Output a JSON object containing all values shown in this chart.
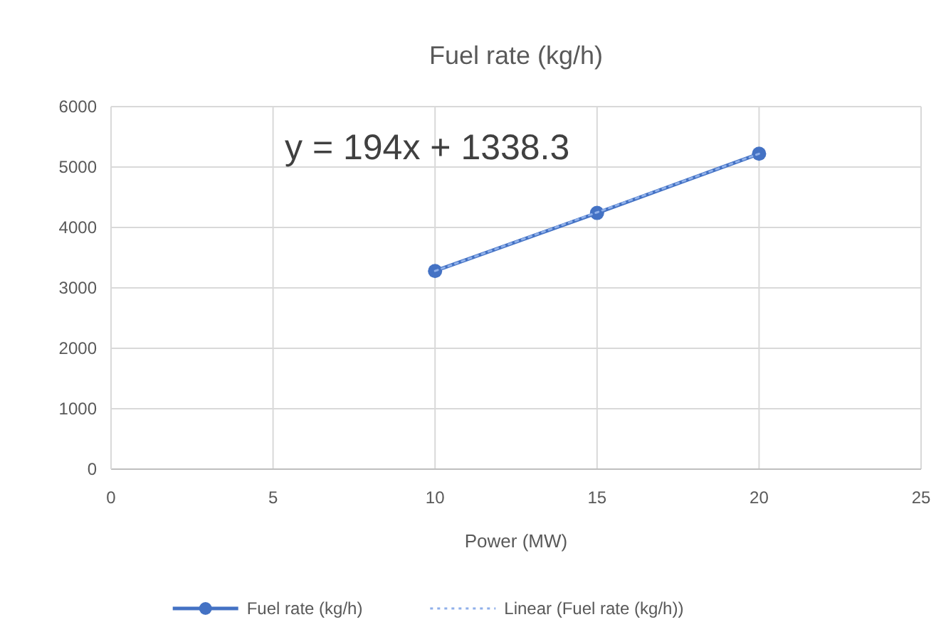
{
  "chart_data": {
    "type": "line",
    "title": "Fuel rate (kg/h)",
    "xlabel": "Power (MW)",
    "annotations": [
      "y = 194x + 1338.3"
    ],
    "x": [
      10,
      15,
      20
    ],
    "series": [
      {
        "name": "Fuel rate (kg/h)",
        "color": "#4472c4",
        "values": [
          3280,
          4240,
          5220
        ],
        "marker": "circle",
        "line_style": "solid"
      },
      {
        "name": "Linear (Fuel rate (kg/h))",
        "color": "#8fb0ea",
        "values": [
          3280,
          4250,
          5220
        ],
        "marker": "none",
        "line_style": "dotted"
      }
    ],
    "xlim": [
      0,
      25
    ],
    "xticks": [
      0,
      5,
      10,
      15,
      20,
      25
    ],
    "ylim": [
      0,
      6000
    ],
    "yticks": [
      0,
      1000,
      2000,
      3000,
      4000,
      5000,
      6000
    ],
    "grid": true,
    "legend": "bottom"
  }
}
